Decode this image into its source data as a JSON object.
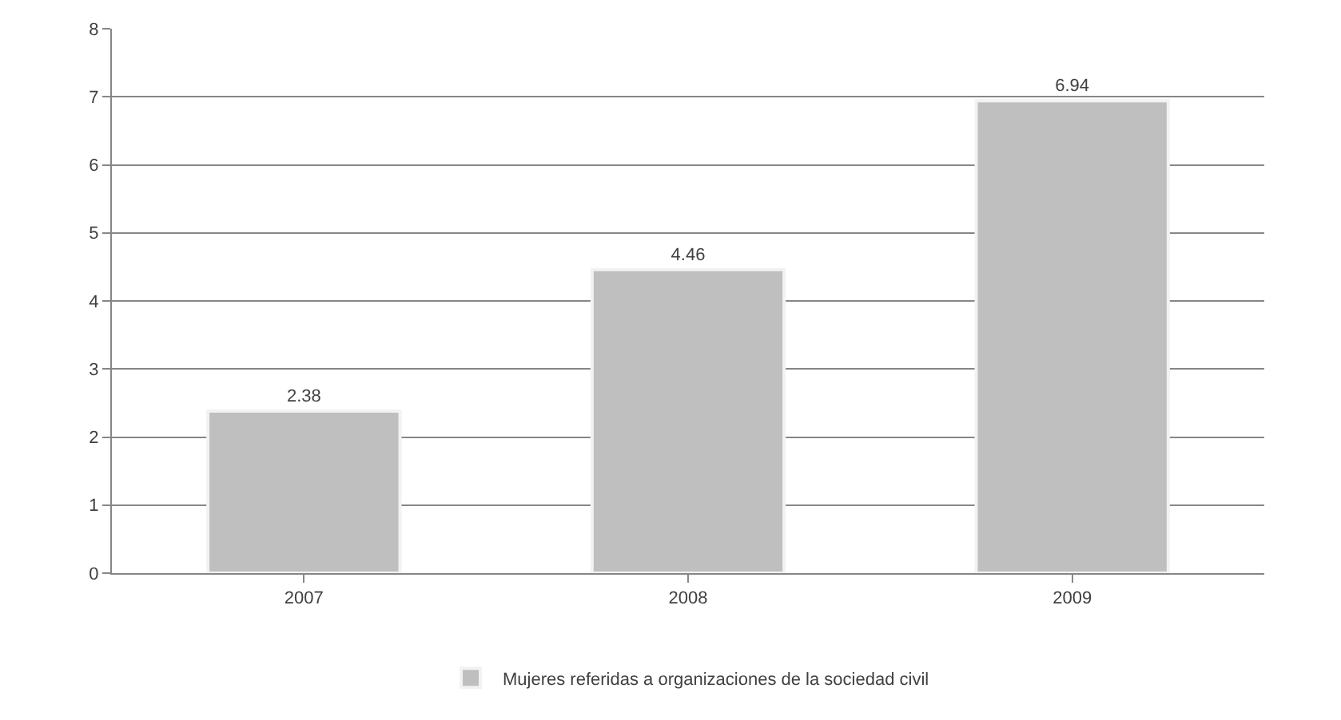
{
  "chart_data": {
    "type": "bar",
    "categories": [
      "2007",
      "2008",
      "2009"
    ],
    "series": [
      {
        "name": "Mujeres referidas a organizaciones de la sociedad civil",
        "color": "#bfbfbf",
        "values": [
          2.38,
          4.46,
          6.94
        ]
      }
    ],
    "ylim": [
      0,
      8
    ],
    "yticks": [
      0,
      1,
      2,
      3,
      4,
      5,
      6,
      7,
      8
    ],
    "grid": "y",
    "legend": "bottom",
    "data_labels": true
  }
}
